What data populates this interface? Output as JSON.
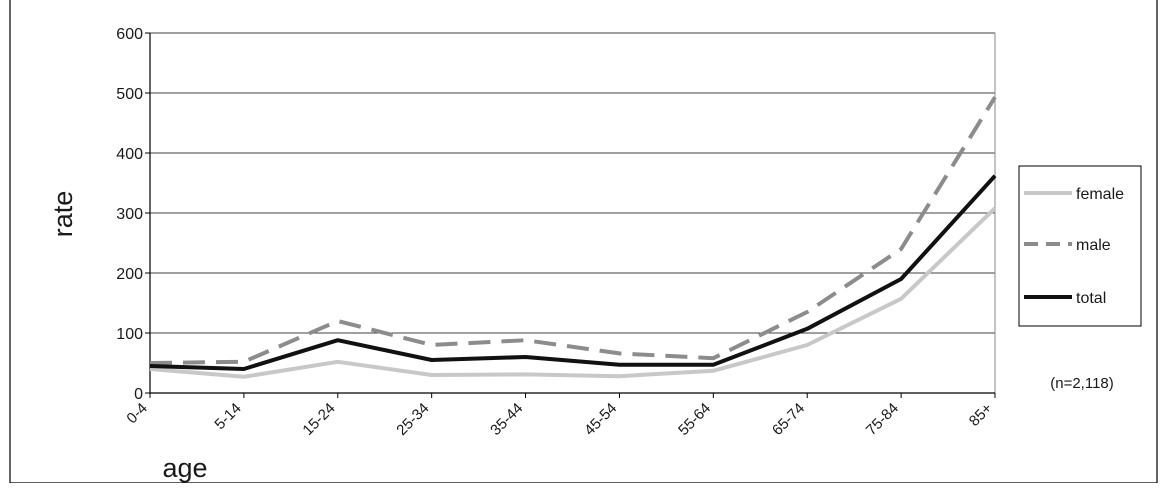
{
  "chart_data": {
    "type": "line",
    "title": "",
    "xlabel": "age",
    "ylabel": "rate",
    "categories": [
      "0-4",
      "5-14",
      "15-24",
      "25-34",
      "35-44",
      "45-54",
      "55-64",
      "65-74",
      "75-84",
      "85+"
    ],
    "ylim": [
      0,
      600
    ],
    "yticks": [
      0,
      100,
      200,
      300,
      400,
      500,
      600
    ],
    "grid": true,
    "legend_placement": "right",
    "annotation": "(n=2,118)",
    "series": [
      {
        "name": "female",
        "color": "#c8c8c8",
        "style": "solid",
        "values": [
          40,
          27,
          52,
          30,
          31,
          28,
          37,
          80,
          157,
          308
        ]
      },
      {
        "name": "male",
        "color": "#8c8c8c",
        "style": "dashed",
        "values": [
          50,
          52,
          120,
          80,
          88,
          66,
          58,
          135,
          240,
          493
        ]
      },
      {
        "name": "total",
        "color": "#111111",
        "style": "solid",
        "values": [
          45,
          40,
          88,
          55,
          60,
          47,
          47,
          107,
          190,
          362
        ]
      }
    ]
  }
}
